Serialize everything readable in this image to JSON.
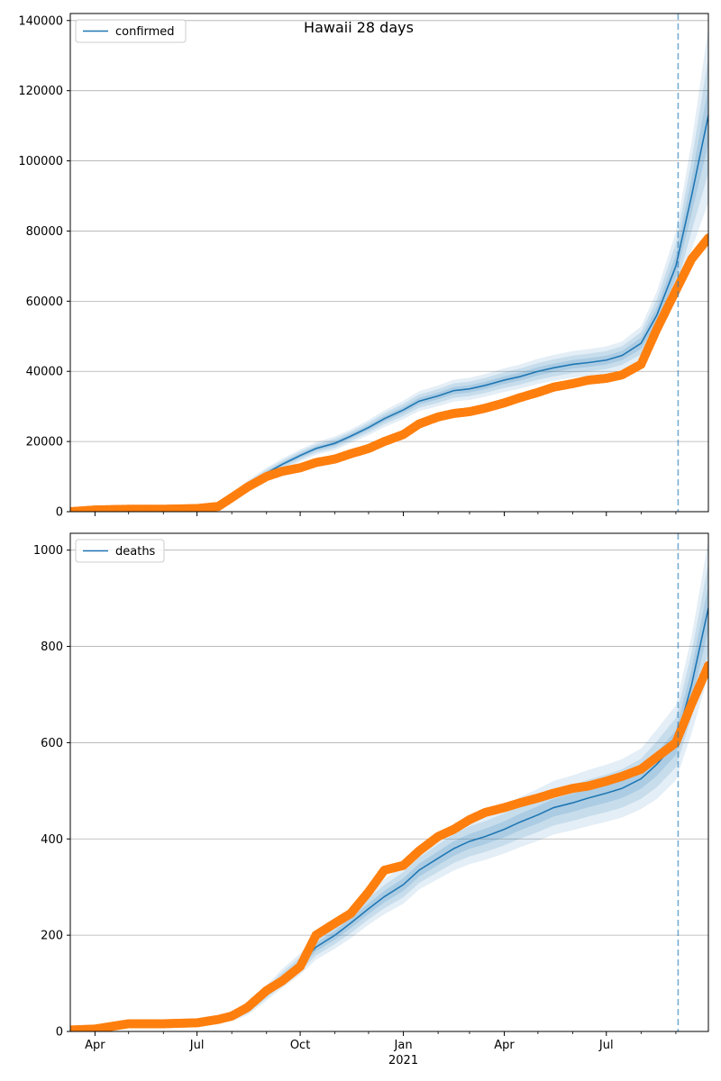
{
  "figure": {
    "title": "Hawaii 28 days"
  },
  "colors": {
    "model": "#1f77b4",
    "observed": "#ff7f0e",
    "grid": "#b0b0b0",
    "cutoff": "#1f77b4",
    "band": "#1f77b4"
  },
  "chart_data": [
    {
      "type": "line",
      "title": "Hawaii 28 days",
      "xlabel": "",
      "ylabel": "",
      "x_range": [
        "2020-03-10",
        "2021-09-30"
      ],
      "ylim": [
        0,
        142000
      ],
      "x_ticks": [
        {
          "date": "2020-04-01",
          "label": "Apr"
        },
        {
          "date": "2020-07-01",
          "label": "Jul"
        },
        {
          "date": "2020-10-01",
          "label": "Oct"
        },
        {
          "date": "2021-01-01",
          "label": "Jan"
        },
        {
          "date": "2021-04-01",
          "label": "Apr"
        },
        {
          "date": "2021-07-01",
          "label": "Jul"
        }
      ],
      "x_minor_ticks": [
        "2020-05-01",
        "2020-06-01",
        "2020-08-01",
        "2020-09-01",
        "2020-11-01",
        "2020-12-01",
        "2021-02-01",
        "2021-03-01",
        "2021-05-01",
        "2021-06-01",
        "2021-08-01",
        "2021-09-01"
      ],
      "year_label": "2021",
      "y_ticks": [
        0,
        20000,
        40000,
        60000,
        80000,
        100000,
        120000,
        140000
      ],
      "grid": true,
      "legend": "top-left",
      "forecast_start": "2021-09-03",
      "series": [
        {
          "name": "confirmed",
          "x": [
            "2020-03-10",
            "2020-07-15",
            "2020-08-01",
            "2020-08-15",
            "2020-09-01",
            "2020-09-15",
            "2020-10-01",
            "2020-10-15",
            "2020-11-01",
            "2020-11-15",
            "2020-12-01",
            "2020-12-15",
            "2021-01-01",
            "2021-01-15",
            "2021-02-01",
            "2021-02-15",
            "2021-03-01",
            "2021-03-15",
            "2021-04-01",
            "2021-04-15",
            "2021-05-01",
            "2021-05-15",
            "2021-06-01",
            "2021-06-15",
            "2021-07-01",
            "2021-07-15",
            "2021-08-01",
            "2021-08-15",
            "2021-09-01",
            "2021-09-15",
            "2021-09-30"
          ],
          "values": [
            0,
            1200,
            4000,
            7500,
            11000,
            13500,
            16000,
            18000,
            19500,
            21500,
            24000,
            26500,
            29000,
            31500,
            33000,
            34500,
            35000,
            36000,
            37500,
            38500,
            40000,
            41000,
            42000,
            42500,
            43200,
            44500,
            48000,
            56000,
            70000,
            90000,
            113000
          ],
          "band_rel": [
            0,
            0.25,
            0.22,
            0.18,
            0.14,
            0.12,
            0.11,
            0.1,
            0.1,
            0.09,
            0.09,
            0.09,
            0.09,
            0.09,
            0.09,
            0.09,
            0.09,
            0.09,
            0.09,
            0.09,
            0.09,
            0.09,
            0.09,
            0.09,
            0.09,
            0.09,
            0.1,
            0.12,
            0.14,
            0.17,
            0.22
          ]
        },
        {
          "name": "",
          "style": "dots",
          "x": [
            "2020-03-10",
            "2020-04-01",
            "2020-05-01",
            "2020-06-01",
            "2020-07-01",
            "2020-07-20",
            "2020-08-01",
            "2020-08-15",
            "2020-09-01",
            "2020-09-15",
            "2020-10-01",
            "2020-10-15",
            "2020-11-01",
            "2020-11-15",
            "2020-12-01",
            "2020-12-15",
            "2021-01-01",
            "2021-01-15",
            "2021-02-01",
            "2021-02-15",
            "2021-03-01",
            "2021-03-15",
            "2021-04-01",
            "2021-04-15",
            "2021-05-01",
            "2021-05-15",
            "2021-06-01",
            "2021-06-15",
            "2021-07-01",
            "2021-07-15",
            "2021-08-01",
            "2021-08-15",
            "2021-09-01",
            "2021-09-15",
            "2021-09-30"
          ],
          "values": [
            0,
            500,
            700,
            700,
            900,
            1500,
            4000,
            7000,
            10000,
            11500,
            12500,
            14000,
            15000,
            16500,
            18000,
            20000,
            22000,
            25000,
            27000,
            28000,
            28500,
            29500,
            31000,
            32500,
            34000,
            35500,
            36500,
            37500,
            38000,
            39000,
            42000,
            52000,
            63000,
            72000,
            78000
          ]
        }
      ]
    },
    {
      "type": "line",
      "title": "",
      "xlabel": "",
      "ylabel": "",
      "x_range": [
        "2020-03-10",
        "2021-09-30"
      ],
      "ylim": [
        0,
        1035
      ],
      "x_ticks": [
        {
          "date": "2020-04-01",
          "label": "Apr"
        },
        {
          "date": "2020-07-01",
          "label": "Jul"
        },
        {
          "date": "2020-10-01",
          "label": "Oct"
        },
        {
          "date": "2021-01-01",
          "label": "Jan"
        },
        {
          "date": "2021-04-01",
          "label": "Apr"
        },
        {
          "date": "2021-07-01",
          "label": "Jul"
        }
      ],
      "x_minor_ticks": [
        "2020-05-01",
        "2020-06-01",
        "2020-08-01",
        "2020-09-01",
        "2020-11-01",
        "2020-12-01",
        "2021-02-01",
        "2021-03-01",
        "2021-05-01",
        "2021-06-01",
        "2021-08-01",
        "2021-09-01"
      ],
      "year_label": "2021",
      "y_ticks": [
        0,
        200,
        400,
        600,
        800,
        1000
      ],
      "grid": true,
      "legend": "top-left",
      "forecast_start": "2021-09-03",
      "series": [
        {
          "name": "deaths",
          "x": [
            "2020-03-10",
            "2020-04-15",
            "2020-07-15",
            "2020-08-01",
            "2020-08-15",
            "2020-09-01",
            "2020-09-15",
            "2020-10-01",
            "2020-10-15",
            "2020-11-01",
            "2020-11-15",
            "2020-12-01",
            "2020-12-15",
            "2021-01-01",
            "2021-01-15",
            "2021-02-01",
            "2021-02-15",
            "2021-03-01",
            "2021-03-15",
            "2021-04-01",
            "2021-04-15",
            "2021-05-01",
            "2021-05-15",
            "2021-06-01",
            "2021-06-15",
            "2021-07-01",
            "2021-07-15",
            "2021-08-01",
            "2021-08-15",
            "2021-09-01",
            "2021-09-15",
            "2021-09-30"
          ],
          "values": [
            0,
            15,
            20,
            30,
            45,
            80,
            110,
            140,
            175,
            200,
            225,
            255,
            280,
            305,
            335,
            360,
            380,
            395,
            405,
            420,
            435,
            450,
            465,
            475,
            485,
            495,
            505,
            525,
            555,
            600,
            720,
            880
          ],
          "band_rel": [
            0,
            0.3,
            0.3,
            0.28,
            0.25,
            0.2,
            0.18,
            0.16,
            0.15,
            0.14,
            0.14,
            0.13,
            0.13,
            0.13,
            0.12,
            0.12,
            0.12,
            0.12,
            0.12,
            0.12,
            0.12,
            0.12,
            0.12,
            0.12,
            0.12,
            0.12,
            0.12,
            0.12,
            0.13,
            0.13,
            0.14,
            0.16
          ]
        },
        {
          "name": "",
          "style": "dots",
          "x": [
            "2020-03-10",
            "2020-04-01",
            "2020-04-20",
            "2020-05-01",
            "2020-06-01",
            "2020-07-01",
            "2020-07-20",
            "2020-08-01",
            "2020-08-15",
            "2020-09-01",
            "2020-09-15",
            "2020-10-01",
            "2020-10-15",
            "2020-11-01",
            "2020-11-15",
            "2020-12-01",
            "2020-12-15",
            "2021-01-01",
            "2021-01-15",
            "2021-02-01",
            "2021-02-15",
            "2021-03-01",
            "2021-03-15",
            "2021-04-01",
            "2021-04-15",
            "2021-05-01",
            "2021-05-15",
            "2021-06-01",
            "2021-06-15",
            "2021-07-01",
            "2021-07-15",
            "2021-08-01",
            "2021-08-15",
            "2021-09-01",
            "2021-09-15",
            "2021-09-30"
          ],
          "values": [
            3,
            5,
            12,
            16,
            16,
            18,
            25,
            32,
            50,
            85,
            105,
            135,
            200,
            225,
            245,
            290,
            335,
            345,
            375,
            405,
            420,
            440,
            455,
            465,
            475,
            485,
            495,
            505,
            510,
            520,
            530,
            545,
            570,
            600,
            680,
            760
          ]
        }
      ]
    }
  ]
}
